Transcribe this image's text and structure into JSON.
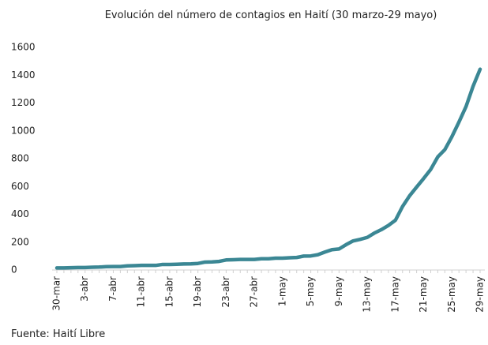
{
  "chart_data": {
    "type": "line",
    "title": "Evolución del número de contagios en Haití (30 marzo-29 mayo)",
    "source": "Fuente: Haití Libre",
    "categories": [
      "30-mar",
      null,
      null,
      null,
      "3-abr",
      null,
      null,
      null,
      "7-abr",
      null,
      null,
      null,
      "11-abr",
      null,
      null,
      null,
      "15-abr",
      null,
      null,
      null,
      "19-abr",
      null,
      null,
      null,
      "23-abr",
      null,
      null,
      null,
      "27-abr",
      null,
      null,
      null,
      "1-may",
      null,
      null,
      null,
      "5-may",
      null,
      null,
      null,
      "9-may",
      null,
      null,
      null,
      "13-may",
      null,
      null,
      null,
      "17-may",
      null,
      null,
      null,
      "21-may",
      null,
      null,
      null,
      "25-may",
      null,
      null,
      null,
      "29-may"
    ],
    "series": [
      {
        "name": "Contagios",
        "color": "#3b8794",
        "values": [
          15,
          15,
          16,
          18,
          18,
          20,
          21,
          24,
          25,
          25,
          30,
          31,
          33,
          33,
          33,
          40,
          40,
          41,
          43,
          44,
          47,
          57,
          58,
          62,
          72,
          74,
          76,
          76,
          76,
          81,
          81,
          85,
          85,
          88,
          90,
          100,
          101,
          110,
          129,
          146,
          151,
          182,
          209,
          220,
          234,
          265,
          290,
          320,
          358,
          456,
          533,
          596,
          658,
          723,
          813,
          865,
          958,
          1063,
          1174,
          1320,
          1443
        ]
      }
    ],
    "ylim": [
      0,
      1600
    ],
    "yticks": [
      0,
      200,
      400,
      600,
      800,
      1000,
      1200,
      1400,
      1600
    ]
  }
}
